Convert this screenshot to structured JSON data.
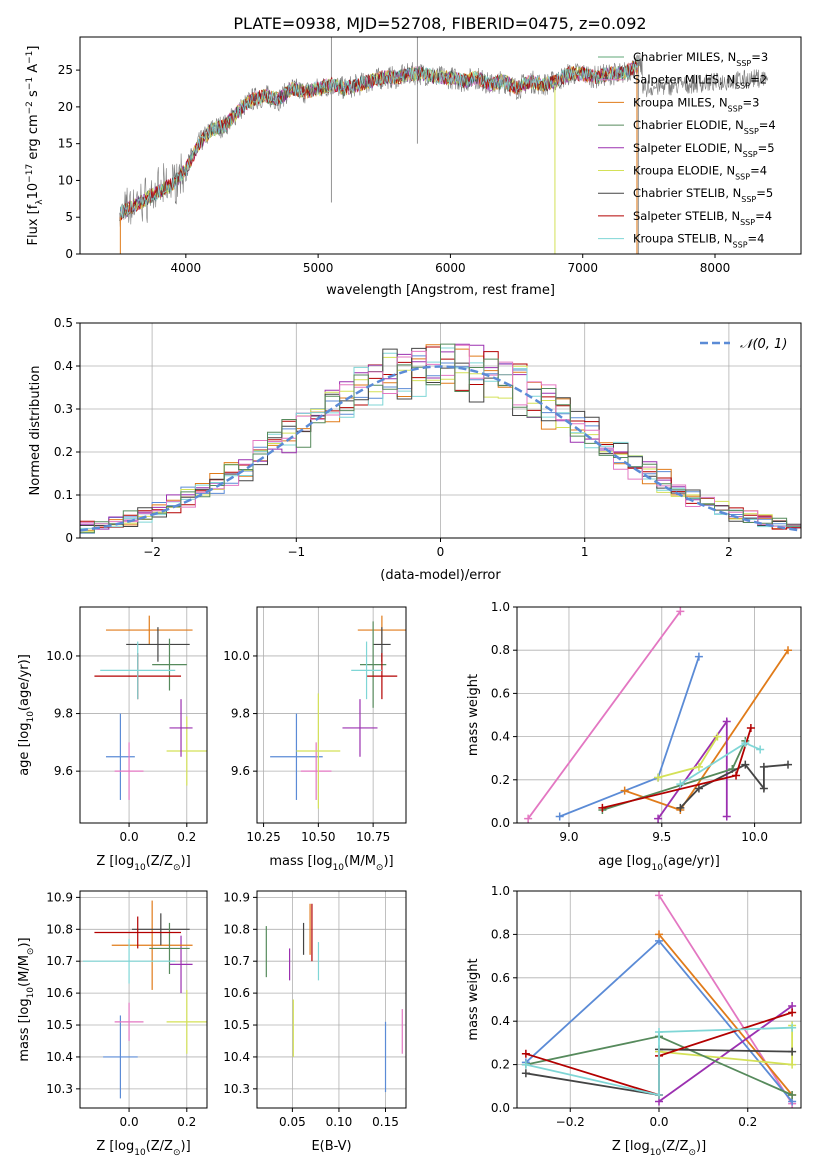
{
  "figure_title": "PLATE=0938, MJD=52708, FIBERID=0475, z=0.092",
  "chart_data": [
    {
      "id": "spectrum",
      "type": "line",
      "xlabel": "wavelength [Angstrom, rest frame]",
      "ylabel_parts": [
        "Flux [f",
        "λ",
        "10",
        "−17",
        " erg cm",
        "−2",
        " s",
        "−1",
        " A",
        "−1",
        "]"
      ],
      "xlim": [
        3200,
        8650
      ],
      "ylim": [
        0,
        29.5
      ],
      "xticks": [
        4000,
        5000,
        6000,
        7000,
        8000
      ],
      "yticks": [
        0,
        5,
        10,
        15,
        20,
        25
      ],
      "grid": false,
      "legend_position": "top-right",
      "observed_color": "#7a7a7a",
      "continuum_knots": [
        [
          3500,
          5.5
        ],
        [
          3700,
          7.5
        ],
        [
          3900,
          9.5
        ],
        [
          4000,
          11.5
        ],
        [
          4100,
          15
        ],
        [
          4200,
          17
        ],
        [
          4300,
          17.5
        ],
        [
          4400,
          19.5
        ],
        [
          4500,
          21
        ],
        [
          4600,
          21.5
        ],
        [
          4700,
          21
        ],
        [
          4800,
          22.5
        ],
        [
          4900,
          22
        ],
        [
          5000,
          22.5
        ],
        [
          5100,
          23
        ],
        [
          5200,
          22.5
        ],
        [
          5300,
          23
        ],
        [
          5400,
          23.5
        ],
        [
          5500,
          24
        ],
        [
          5600,
          24
        ],
        [
          5700,
          24.5
        ],
        [
          5800,
          24.5
        ],
        [
          5900,
          24
        ],
        [
          6000,
          24
        ],
        [
          6100,
          23.5
        ],
        [
          6200,
          24
        ],
        [
          6300,
          23
        ],
        [
          6400,
          23.5
        ],
        [
          6500,
          22.5
        ],
        [
          6600,
          23.5
        ],
        [
          6700,
          23
        ],
        [
          6800,
          23.5
        ],
        [
          6900,
          24.5
        ],
        [
          7000,
          24.5
        ],
        [
          7100,
          24
        ],
        [
          7200,
          24.5
        ],
        [
          7300,
          24.5
        ],
        [
          7400,
          25.5
        ]
      ],
      "series": [
        {
          "name_base": "Chabrier MILES",
          "nssp": "3",
          "color": "#5fa777"
        },
        {
          "name_base": "Salpeter MILES",
          "nssp": "2",
          "color": "#e377c2"
        },
        {
          "name_base": "Kroupa MILES",
          "nssp": "3",
          "color": "#e07b1a"
        },
        {
          "name_base": "Chabrier ELODIE",
          "nssp": "4",
          "color": "#568a5c"
        },
        {
          "name_base": "Salpeter ELODIE",
          "nssp": "5",
          "color": "#9b30b0"
        },
        {
          "name_base": "Kroupa ELODIE",
          "nssp": "4",
          "color": "#d4e157"
        },
        {
          "name_base": "Chabrier STELIB",
          "nssp": "5",
          "color": "#444444"
        },
        {
          "name_base": "Salpeter STELIB",
          "nssp": "4",
          "color": "#b30000"
        },
        {
          "name_base": "Kroupa STELIB",
          "nssp": "4",
          "color": "#7fd6d6"
        }
      ],
      "nssp_label": "SSP"
    },
    {
      "id": "residuals",
      "type": "bar",
      "xlabel": "(data-model)/error",
      "ylabel": "Normed distribution",
      "xlim": [
        -2.5,
        2.5
      ],
      "ylim": [
        0,
        0.5
      ],
      "xticks": [
        -2,
        -1,
        0,
        1,
        2
      ],
      "xtick_labels": [
        "−2",
        "−1",
        "0",
        "1",
        "2"
      ],
      "yticks": [
        0.0,
        0.1,
        0.2,
        0.3,
        0.4,
        0.5
      ],
      "grid": true,
      "legend_position": "top-right",
      "legend_label": "𝒩(0, 1)",
      "reference_color": "#5b8bd6",
      "hist_colors": [
        "#5b8bd6",
        "#e07b1a",
        "#9b30b0",
        "#b30000",
        "#d4e157",
        "#7fd6d6",
        "#444444",
        "#e377c2",
        "#568a5c"
      ]
    },
    {
      "id": "age-vs-Z",
      "type": "scatter",
      "xlabel_parts": [
        "Z [log",
        "10",
        "(Z/Z",
        "⊙",
        ")]"
      ],
      "ylabel_parts": [
        "age  [log",
        "10",
        "(age/yr)]"
      ],
      "xlim": [
        -0.17,
        0.27
      ],
      "ylim": [
        9.42,
        10.17
      ],
      "xticks": [
        0.0,
        0.2
      ],
      "xtick_labels": [
        "0.0",
        "0.2"
      ],
      "yticks": [
        9.6,
        9.8,
        10.0
      ],
      "ytick_labels": [
        "9.6",
        "9.8",
        "10.0"
      ],
      "grid": true,
      "points": [
        {
          "x": -0.03,
          "y": 9.65,
          "xerr": 0.05,
          "yerr": 0.15,
          "color": "#5b8bd6"
        },
        {
          "x": 0.0,
          "y": 9.6,
          "xerr": 0.05,
          "yerr": 0.1,
          "color": "#e377c2"
        },
        {
          "x": 0.2,
          "y": 9.67,
          "xerr": 0.07,
          "yerr": 0.12,
          "color": "#d4e157"
        },
        {
          "x": 0.18,
          "y": 9.75,
          "xerr": 0.04,
          "yerr": 0.1,
          "color": "#9b30b0"
        },
        {
          "x": 0.07,
          "y": 10.09,
          "xerr": 0.15,
          "yerr": 0.05,
          "color": "#e07b1a"
        },
        {
          "x": 0.1,
          "y": 10.04,
          "xerr": 0.11,
          "yerr": 0.06,
          "color": "#444444"
        },
        {
          "x": 0.14,
          "y": 9.97,
          "xerr": 0.06,
          "yerr": 0.09,
          "color": "#568a5c"
        },
        {
          "x": 0.03,
          "y": 9.93,
          "xerr": 0.15,
          "yerr": 0.08,
          "color": "#b30000"
        },
        {
          "x": 0.03,
          "y": 9.95,
          "xerr": 0.13,
          "yerr": 0.1,
          "color": "#7fd6d6"
        }
      ]
    },
    {
      "id": "age-vs-mass",
      "type": "scatter",
      "xlabel_parts": [
        "mass [log",
        "10",
        "(M/M",
        "⊙",
        ")]"
      ],
      "xlim": [
        10.22,
        10.9
      ],
      "ylim": [
        9.42,
        10.17
      ],
      "xticks": [
        10.25,
        10.5,
        10.75
      ],
      "xtick_labels": [
        "10.25",
        "10.50",
        "10.75"
      ],
      "yticks": [
        9.6,
        9.8,
        10.0
      ],
      "ytick_labels": [
        "9.6",
        "9.8",
        "10.0"
      ],
      "grid": true,
      "points": [
        {
          "x": 10.4,
          "y": 9.65,
          "xerr": 0.12,
          "yerr": 0.15,
          "color": "#5b8bd6"
        },
        {
          "x": 10.49,
          "y": 9.6,
          "xerr": 0.07,
          "yerr": 0.1,
          "color": "#e377c2"
        },
        {
          "x": 10.5,
          "y": 9.67,
          "xerr": 0.1,
          "yerr": 0.2,
          "color": "#d4e157"
        },
        {
          "x": 10.69,
          "y": 9.75,
          "xerr": 0.08,
          "yerr": 0.1,
          "color": "#9b30b0"
        },
        {
          "x": 10.79,
          "y": 10.09,
          "xerr": 0.11,
          "yerr": 0.05,
          "color": "#e07b1a"
        },
        {
          "x": 10.79,
          "y": 10.04,
          "xerr": 0.04,
          "yerr": 0.06,
          "color": "#444444"
        },
        {
          "x": 10.75,
          "y": 9.97,
          "xerr": 0.06,
          "yerr": 0.15,
          "color": "#568a5c"
        },
        {
          "x": 10.79,
          "y": 9.93,
          "xerr": 0.07,
          "yerr": 0.08,
          "color": "#b30000"
        },
        {
          "x": 10.72,
          "y": 9.95,
          "xerr": 0.07,
          "yerr": 0.1,
          "color": "#7fd6d6"
        }
      ]
    },
    {
      "id": "weight-vs-age",
      "type": "line",
      "xlabel_parts": [
        "age  [log",
        "10",
        "(age/yr)]"
      ],
      "ylabel": "mass weight",
      "xlim": [
        8.72,
        10.25
      ],
      "ylim": [
        0,
        1.0
      ],
      "xticks": [
        9.0,
        9.5,
        10.0
      ],
      "xtick_labels": [
        "9.0",
        "9.5",
        "10.0"
      ],
      "yticks": [
        0.0,
        0.2,
        0.4,
        0.6,
        0.8,
        1.0
      ],
      "ytick_labels": [
        "0.0",
        "0.2",
        "0.4",
        "0.6",
        "0.8",
        "1.0"
      ],
      "grid": true,
      "series": [
        {
          "color": "#e377c2",
          "points": [
            [
              8.78,
              0.02
            ],
            [
              9.6,
              0.98
            ]
          ]
        },
        {
          "color": "#5b8bd6",
          "points": [
            [
              8.95,
              0.03
            ],
            [
              9.48,
              0.21
            ],
            [
              9.7,
              0.77
            ]
          ]
        },
        {
          "color": "#e07b1a",
          "points": [
            [
              9.3,
              0.15
            ],
            [
              9.6,
              0.06
            ],
            [
              10.18,
              0.8
            ]
          ]
        },
        {
          "color": "#9b30b0",
          "points": [
            [
              9.48,
              0.02
            ],
            [
              9.85,
              0.47
            ],
            [
              9.85,
              0.03
            ]
          ]
        },
        {
          "color": "#d4e157",
          "points": [
            [
              9.48,
              0.21
            ],
            [
              9.7,
              0.26
            ],
            [
              9.8,
              0.4
            ]
          ]
        },
        {
          "color": "#568a5c",
          "points": [
            [
              9.18,
              0.06
            ],
            [
              9.88,
              0.25
            ],
            [
              9.95,
              0.38
            ]
          ]
        },
        {
          "color": "#444444",
          "points": [
            [
              9.6,
              0.07
            ],
            [
              9.7,
              0.16
            ],
            [
              9.95,
              0.27
            ],
            [
              10.05,
              0.16
            ],
            [
              10.05,
              0.26
            ],
            [
              10.18,
              0.27
            ]
          ]
        },
        {
          "color": "#b30000",
          "points": [
            [
              9.18,
              0.07
            ],
            [
              9.9,
              0.22
            ],
            [
              9.98,
              0.44
            ]
          ]
        },
        {
          "color": "#7fd6d6",
          "points": [
            [
              9.6,
              0.18
            ],
            [
              9.95,
              0.37
            ],
            [
              10.03,
              0.34
            ]
          ]
        }
      ]
    },
    {
      "id": "mass-vs-Z",
      "type": "scatter",
      "xlabel_parts": [
        "Z [log",
        "10",
        "(Z/Z",
        "⊙",
        ")]"
      ],
      "ylabel_parts": [
        "mass [log",
        "10",
        "(M/M",
        "⊙",
        ")]"
      ],
      "xlim": [
        -0.17,
        0.27
      ],
      "ylim": [
        10.24,
        10.92
      ],
      "xticks": [
        0.0,
        0.2
      ],
      "xtick_labels": [
        "0.0",
        "0.2"
      ],
      "yticks": [
        10.3,
        10.4,
        10.5,
        10.6,
        10.7,
        10.8,
        10.9
      ],
      "ytick_labels": [
        "10.3",
        "10.4",
        "10.5",
        "10.6",
        "10.7",
        "10.8",
        "10.9"
      ],
      "grid": true,
      "points": [
        {
          "x": -0.03,
          "y": 10.4,
          "xerr": 0.06,
          "yerr": 0.13,
          "color": "#5b8bd6"
        },
        {
          "x": 0.0,
          "y": 10.51,
          "xerr": 0.05,
          "yerr": 0.06,
          "color": "#e377c2"
        },
        {
          "x": 0.2,
          "y": 10.51,
          "xerr": 0.07,
          "yerr": 0.1,
          "color": "#d4e157"
        },
        {
          "x": 0.18,
          "y": 10.69,
          "xerr": 0.04,
          "yerr": 0.09,
          "color": "#9b30b0"
        },
        {
          "x": 0.08,
          "y": 10.75,
          "xerr": 0.14,
          "yerr": 0.14,
          "color": "#e07b1a"
        },
        {
          "x": 0.11,
          "y": 10.8,
          "xerr": 0.1,
          "yerr": 0.05,
          "color": "#444444"
        },
        {
          "x": 0.14,
          "y": 10.74,
          "xerr": 0.07,
          "yerr": 0.08,
          "color": "#568a5c"
        },
        {
          "x": 0.03,
          "y": 10.79,
          "xerr": 0.15,
          "yerr": 0.05,
          "color": "#b30000"
        },
        {
          "x": 0.0,
          "y": 10.7,
          "xerr": 0.16,
          "yerr": 0.07,
          "color": "#7fd6d6"
        }
      ]
    },
    {
      "id": "mass-vs-EBV",
      "type": "scatter",
      "xlabel": "E(B-V)",
      "xlim": [
        0.012,
        0.172
      ],
      "ylim": [
        10.24,
        10.92
      ],
      "xticks": [
        0.05,
        0.1,
        0.15
      ],
      "xtick_labels": [
        "0.05",
        "0.10",
        "0.15"
      ],
      "yticks": [
        10.3,
        10.4,
        10.5,
        10.6,
        10.7,
        10.8,
        10.9
      ],
      "ytick_labels": [
        "10.3",
        "10.4",
        "10.5",
        "10.6",
        "10.7",
        "10.8",
        "10.9"
      ],
      "grid": true,
      "points": [
        {
          "x": 0.15,
          "y": 10.4,
          "yerr": 0.11,
          "color": "#5b8bd6"
        },
        {
          "x": 0.168,
          "y": 10.48,
          "yerr": 0.07,
          "color": "#e377c2"
        },
        {
          "x": 0.051,
          "y": 10.49,
          "yerr": 0.09,
          "color": "#d4e157"
        },
        {
          "x": 0.047,
          "y": 10.69,
          "yerr": 0.05,
          "color": "#9b30b0"
        },
        {
          "x": 0.069,
          "y": 10.8,
          "yerr": 0.08,
          "color": "#e07b1a"
        },
        {
          "x": 0.062,
          "y": 10.77,
          "yerr": 0.05,
          "color": "#444444"
        },
        {
          "x": 0.022,
          "y": 10.73,
          "yerr": 0.08,
          "color": "#568a5c"
        },
        {
          "x": 0.071,
          "y": 10.79,
          "yerr": 0.09,
          "color": "#b30000"
        },
        {
          "x": 0.078,
          "y": 10.7,
          "yerr": 0.06,
          "color": "#7fd6d6"
        }
      ]
    },
    {
      "id": "weight-vs-Z",
      "type": "line",
      "xlabel_parts": [
        "Z [log",
        "10",
        "(Z/Z",
        "⊙",
        ")]"
      ],
      "ylabel": "mass weight",
      "xlim": [
        -0.32,
        0.32
      ],
      "ylim": [
        0,
        1.0
      ],
      "xticks": [
        -0.2,
        0.0,
        0.2
      ],
      "xtick_labels": [
        "−0.2",
        "0.0",
        "0.2"
      ],
      "yticks": [
        0.0,
        0.2,
        0.4,
        0.6,
        0.8,
        1.0
      ],
      "ytick_labels": [
        "0.0",
        "0.2",
        "0.4",
        "0.6",
        "0.8",
        "1.0"
      ],
      "grid": true,
      "series": [
        {
          "color": "#e377c2",
          "points": [
            [
              0.0,
              0.98
            ],
            [
              0.3,
              0.02
            ]
          ]
        },
        {
          "color": "#5b8bd6",
          "points": [
            [
              -0.3,
              0.21
            ],
            [
              0.0,
              0.77
            ],
            [
              0.3,
              0.03
            ]
          ]
        },
        {
          "color": "#e07b1a",
          "points": [
            [
              0.0,
              0.8
            ],
            [
              0.3,
              0.06
            ]
          ]
        },
        {
          "color": "#9b30b0",
          "points": [
            [
              0.0,
              0.03
            ],
            [
              0.3,
              0.47
            ]
          ]
        },
        {
          "color": "#d4e157",
          "points": [
            [
              0.0,
              0.26
            ],
            [
              0.3,
              0.2
            ],
            [
              0.3,
              0.38
            ]
          ]
        },
        {
          "color": "#568a5c",
          "points": [
            [
              -0.3,
              0.2
            ],
            [
              0.0,
              0.33
            ],
            [
              0.3,
              0.06
            ]
          ]
        },
        {
          "color": "#444444",
          "points": [
            [
              -0.3,
              0.16
            ],
            [
              0.0,
              0.06
            ],
            [
              0.0,
              0.27
            ],
            [
              0.3,
              0.26
            ]
          ]
        },
        {
          "color": "#b30000",
          "points": [
            [
              -0.3,
              0.25
            ],
            [
              0.0,
              0.06
            ],
            [
              0.0,
              0.24
            ],
            [
              0.3,
              0.44
            ]
          ]
        },
        {
          "color": "#7fd6d6",
          "points": [
            [
              -0.3,
              0.2
            ],
            [
              0.0,
              0.06
            ],
            [
              0.0,
              0.35
            ],
            [
              0.3,
              0.37
            ]
          ]
        }
      ]
    }
  ]
}
